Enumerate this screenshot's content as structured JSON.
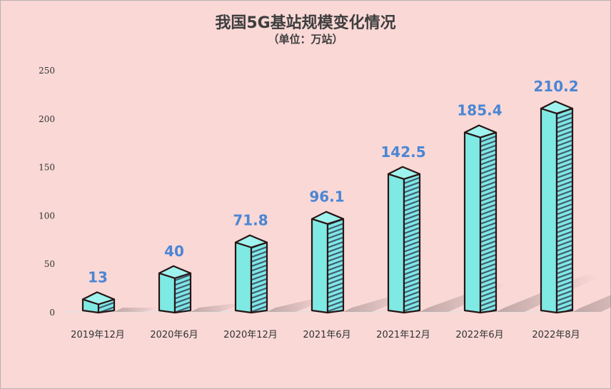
{
  "chart_data": {
    "type": "bar",
    "title": "我国5G基站规模变化情况",
    "subtitle": "（单位：万站）",
    "categories": [
      "2019年12月",
      "2020年6月",
      "2020年12月",
      "2021年6月",
      "2021年12月",
      "2022年6月",
      "2022年8月"
    ],
    "values": [
      13,
      40,
      71.8,
      96.1,
      142.5,
      185.4,
      210.2
    ],
    "data_labels": [
      "13",
      "40",
      "71.8",
      "96.1",
      "142.5",
      "185.4",
      "210.2"
    ],
    "y_ticks": [
      "0",
      "50",
      "100",
      "150",
      "200",
      "250"
    ],
    "ylim": [
      0,
      250
    ],
    "grid": false,
    "legend": "none",
    "colors": {
      "bar_front": "#7fe9e4",
      "bar_top": "#9ff3ee",
      "bar_side_hatch": "#3f5c73",
      "outline": "#2a1414",
      "label": "#4a86d4",
      "background": "#f9d8d6"
    }
  }
}
